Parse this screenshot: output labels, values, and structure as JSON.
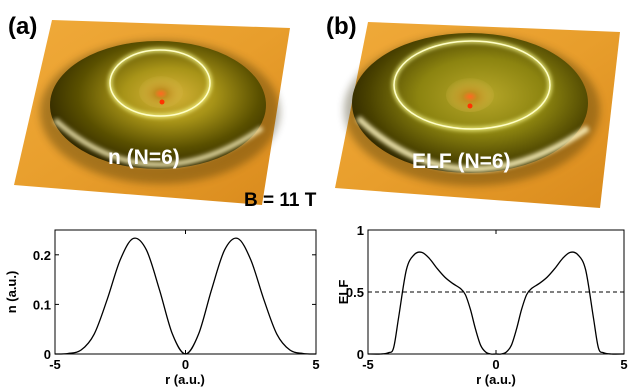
{
  "panels": {
    "a_letter": "(a)",
    "b_letter": "(b)",
    "a_surface_label": "n (N=6)",
    "b_surface_label": "ELF (N=6)",
    "field_label": "B = 11 T"
  },
  "colors": {
    "surface_base": "#e8a030",
    "surface_dark": "#3a3000",
    "ring_glow": "#ffff80",
    "peak": "#ff3300"
  },
  "chart_data": [
    {
      "type": "line",
      "panel": "(a)",
      "xlabel": "r (a.u.)",
      "ylabel": "n (a.u.)",
      "xlim": [
        -5,
        5
      ],
      "ylim": [
        0,
        0.25
      ],
      "xticks": [
        -5,
        0,
        5
      ],
      "xtick_labels": [
        "-5",
        "0",
        "5"
      ],
      "yticks": [
        0,
        0.1,
        0.2
      ],
      "ytick_labels": [
        "0",
        "0.1",
        "0.2"
      ],
      "grid": false,
      "series": [
        {
          "x": [
            -5.0,
            -4.5,
            -4.0,
            -3.5,
            -3.0,
            -2.5,
            -2.0,
            -1.5,
            -1.0,
            -0.5,
            0.0,
            0.5,
            1.0,
            1.5,
            2.0,
            2.5,
            3.0,
            3.5,
            4.0,
            4.5,
            5.0
          ],
          "y": [
            0.0,
            0.001,
            0.008,
            0.04,
            0.11,
            0.19,
            0.233,
            0.21,
            0.13,
            0.04,
            0.0,
            0.04,
            0.13,
            0.21,
            0.233,
            0.19,
            0.11,
            0.04,
            0.008,
            0.001,
            0.0
          ]
        }
      ]
    },
    {
      "type": "line",
      "panel": "(b)",
      "xlabel": "r (a.u.)",
      "ylabel": "ELF",
      "xlim": [
        -5,
        5
      ],
      "ylim": [
        0,
        1
      ],
      "xticks": [
        -5,
        0,
        5
      ],
      "xtick_labels": [
        "-5",
        "0",
        "5"
      ],
      "yticks": [
        0,
        0.5,
        1
      ],
      "ytick_labels": [
        "0",
        "0.5",
        "1"
      ],
      "grid": false,
      "reference_line_y": 0.5,
      "series": [
        {
          "x": [
            -5.0,
            -4.5,
            -4.2,
            -4.0,
            -3.8,
            -3.5,
            -3.2,
            -2.9,
            -2.6,
            -2.3,
            -2.0,
            -1.7,
            -1.4,
            -1.2,
            -1.0,
            -0.8,
            -0.6,
            -0.4,
            -0.2,
            0.0,
            0.2,
            0.4,
            0.6,
            0.8,
            1.0,
            1.2,
            1.4,
            1.7,
            2.0,
            2.3,
            2.6,
            2.9,
            3.2,
            3.5,
            3.8,
            4.0,
            4.2,
            4.5,
            5.0
          ],
          "y": [
            0.0,
            0.0,
            0.01,
            0.05,
            0.3,
            0.68,
            0.8,
            0.82,
            0.77,
            0.69,
            0.62,
            0.57,
            0.53,
            0.48,
            0.36,
            0.2,
            0.07,
            0.015,
            0.0,
            0.0,
            0.0,
            0.015,
            0.07,
            0.2,
            0.36,
            0.48,
            0.53,
            0.57,
            0.62,
            0.69,
            0.77,
            0.82,
            0.8,
            0.68,
            0.3,
            0.05,
            0.01,
            0.0,
            0.0
          ]
        }
      ]
    }
  ]
}
